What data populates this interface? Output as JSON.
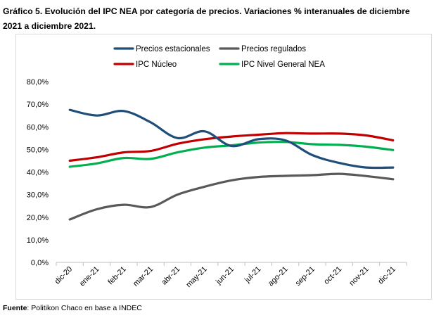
{
  "header": {
    "title": "Gráfico 5. Evolución del IPC NEA por categoría de precios. Variaciones % interanuales de diciembre 2021 a diciembre 2021."
  },
  "footer": {
    "source_label": "Fuente",
    "source_text": ": Politikon Chaco en base a INDEC"
  },
  "chart_data": {
    "type": "line",
    "title": "Gráfico 5. Evolución del IPC NEA por categoría de precios. Variaciones % interanuales de diciembre 2021 a diciembre 2021.",
    "xlabel": "",
    "ylabel": "",
    "categories": [
      "dic-20",
      "ene-21",
      "feb-21",
      "mar-21",
      "abr-21",
      "may-21",
      "jun-21",
      "jul-21",
      "ago-21",
      "sep-21",
      "oct-21",
      "nov-21",
      "dic-21"
    ],
    "y_ticks": [
      "0,0%",
      "10,0%",
      "20,0%",
      "30,0%",
      "40,0%",
      "50,0%",
      "60,0%",
      "70,0%",
      "80,0%"
    ],
    "ylim": [
      0,
      80
    ],
    "grid": false,
    "legend_position": "top",
    "series": [
      {
        "name": "Precios estacionales",
        "color": "#1f4e79",
        "values": [
          67.5,
          65.0,
          67.0,
          62.0,
          55.0,
          58.0,
          51.5,
          54.5,
          54.0,
          47.5,
          44.0,
          42.0,
          42.0
        ]
      },
      {
        "name": "Precios regulados",
        "color": "#595959",
        "values": [
          19.0,
          23.5,
          25.5,
          24.5,
          30.0,
          33.5,
          36.3,
          37.8,
          38.3,
          38.6,
          39.2,
          38.2,
          36.8
        ]
      },
      {
        "name": "IPC Núcleo",
        "color": "#c00000",
        "values": [
          45.0,
          46.5,
          48.7,
          49.3,
          52.5,
          54.5,
          55.7,
          56.5,
          57.2,
          57.0,
          57.0,
          56.2,
          54.0
        ]
      },
      {
        "name": "IPC Nivel General NEA",
        "color": "#00b050",
        "values": [
          42.3,
          43.8,
          46.2,
          45.8,
          48.7,
          50.8,
          51.8,
          53.0,
          53.3,
          52.3,
          52.0,
          51.2,
          49.7
        ]
      }
    ]
  }
}
